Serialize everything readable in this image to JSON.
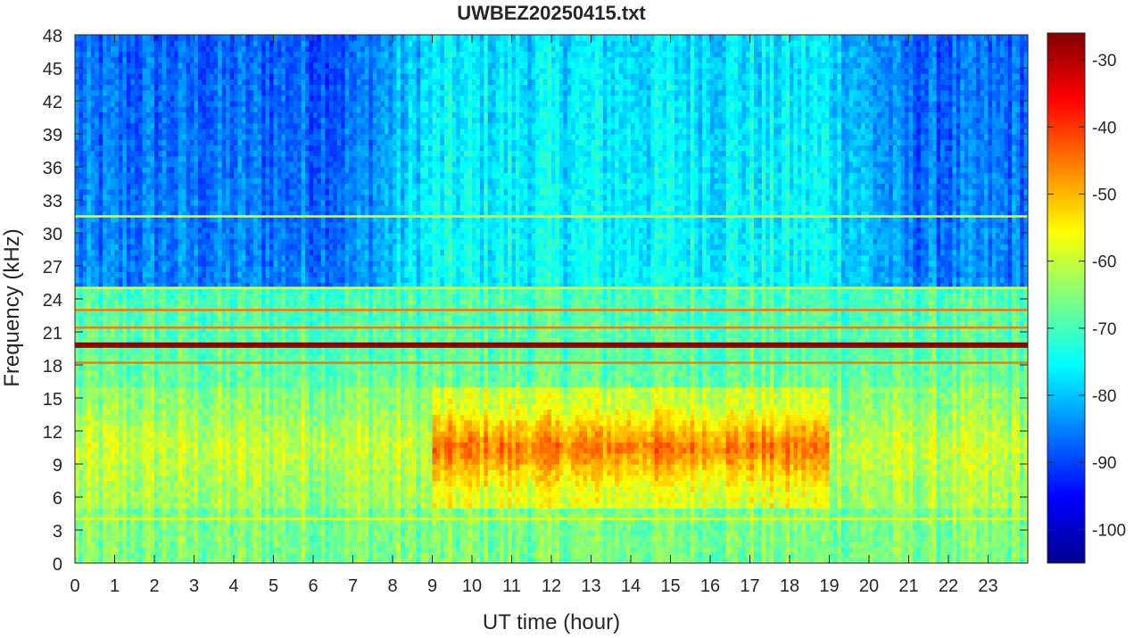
{
  "chart_data": {
    "type": "heatmap",
    "title": "UWBEZ20250415.txt",
    "xlabel": "UT time (hour)",
    "ylabel": "Frequency (kHz)",
    "xlim": [
      0,
      24
    ],
    "ylim": [
      0,
      48
    ],
    "x_ticks": [
      "0",
      "1",
      "2",
      "3",
      "4",
      "5",
      "6",
      "7",
      "8",
      "9",
      "10",
      "11",
      "12",
      "13",
      "14",
      "15",
      "16",
      "17",
      "18",
      "19",
      "20",
      "21",
      "22",
      "23"
    ],
    "y_ticks": [
      "0",
      "3",
      "6",
      "9",
      "12",
      "15",
      "18",
      "21",
      "24",
      "27",
      "30",
      "33",
      "36",
      "39",
      "42",
      "45",
      "48"
    ],
    "colorbar": {
      "colormap": "jet",
      "limits": [
        -105,
        -26
      ],
      "ticks": [
        "-100",
        "-90",
        "-80",
        "-70",
        "-60",
        "-50",
        "-40",
        "-30"
      ]
    },
    "features": {
      "narrowband_lines_khz": [
        19.8,
        18.2,
        21.4,
        25.0,
        23.0,
        4.0,
        31.5
      ],
      "strongest_line_khz": 19.8,
      "broadband_emission": {
        "freq_range_khz": [
          5,
          16
        ],
        "peak_hours": [
          9,
          19
        ],
        "peak_level_db": -45,
        "quiet_level_db": -60
      },
      "background_level_db": {
        "low_freq": -70,
        "high_freq_day": -75,
        "high_freq_night": -85
      }
    },
    "colors": {
      "axis": "#262626",
      "background": "#ffffff"
    }
  }
}
